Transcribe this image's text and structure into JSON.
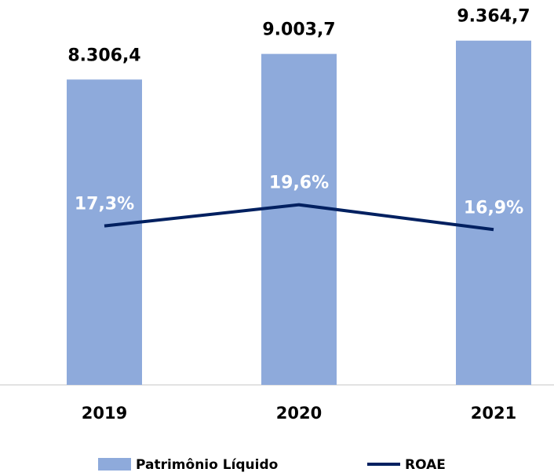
{
  "chart_data": {
    "type": "bar_line",
    "categories": [
      "2019",
      "2020",
      "2021"
    ],
    "series": [
      {
        "name": "Patrimônio Líquido",
        "type": "bar",
        "color": "#8eaadb",
        "values": [
          8306.4,
          9003.7,
          9364.7
        ],
        "value_labels": [
          "8.306,4",
          "9.003,7",
          "9.364,7"
        ]
      },
      {
        "name": "ROAE",
        "type": "line",
        "axis": "y2",
        "color": "#002060",
        "values": [
          17.3,
          19.6,
          16.9
        ],
        "value_labels": [
          "17,3%",
          "19,6%",
          "16,9%"
        ]
      }
    ],
    "ylim": [
      0,
      10000
    ],
    "y2lim": [
      0,
      40
    ],
    "legend": "bottom"
  }
}
